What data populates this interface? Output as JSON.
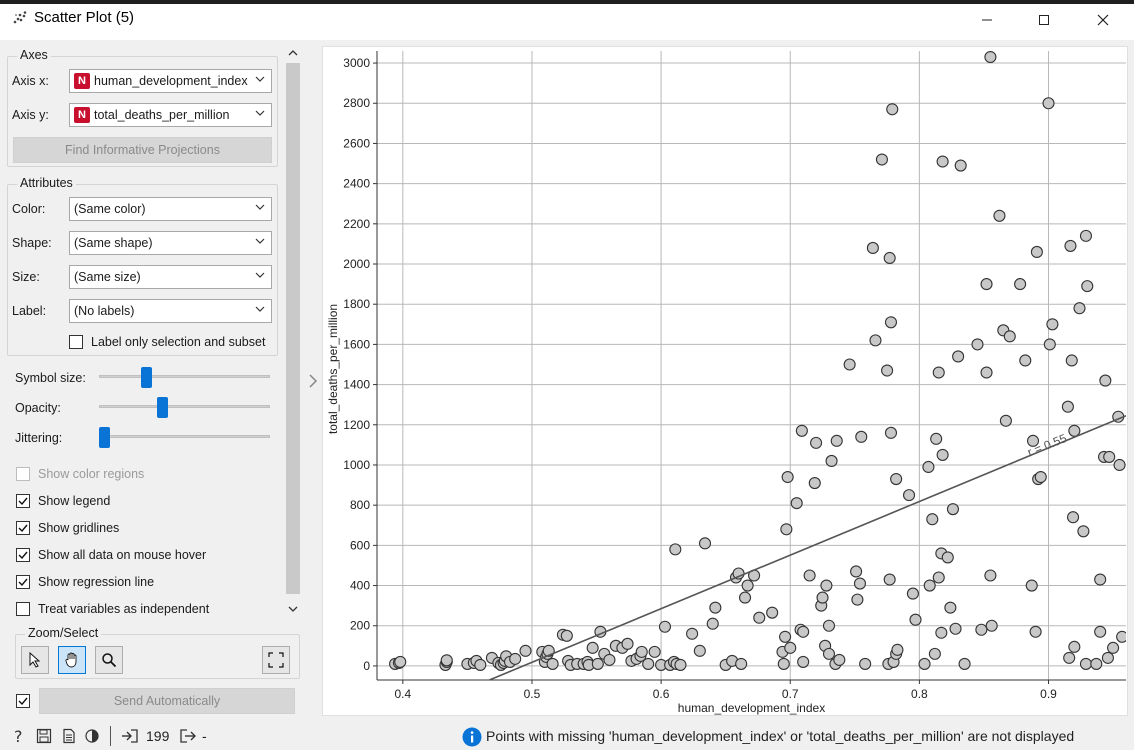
{
  "window": {
    "title": "Scatter Plot (5)",
    "controls": [
      "minimize-icon",
      "maximize-icon",
      "close-icon"
    ]
  },
  "axes_group": {
    "title": "Axes",
    "x_label": "Axis x:",
    "x_value": "human_development_index",
    "y_label": "Axis y:",
    "y_value": "total_deaths_per_million",
    "badge": "N",
    "find_button": "Find Informative Projections"
  },
  "attributes_group": {
    "title": "Attributes",
    "color_label": "Color:",
    "color_value": "(Same color)",
    "shape_label": "Shape:",
    "shape_value": "(Same shape)",
    "size_label": "Size:",
    "size_value": "(Same size)",
    "label_label": "Label:",
    "label_value": "(No labels)",
    "label_only_selection": "Label only selection and subset"
  },
  "sliders": {
    "symbol_size_label": "Symbol size:",
    "symbol_size_level": 0.28,
    "opacity_label": "Opacity:",
    "opacity_level": 0.38,
    "jittering_label": "Jittering:",
    "jittering_level": 0.0
  },
  "options": {
    "show_color_regions": "Show color regions",
    "show_legend": "Show legend",
    "show_gridlines": "Show gridlines",
    "show_all_data": "Show all data on mouse hover",
    "show_regression": "Show regression line",
    "treat_independent": "Treat variables as independent"
  },
  "zoom_select": {
    "title": "Zoom/Select"
  },
  "send_auto": "Send Automatically",
  "status": {
    "count": "199",
    "output": "-",
    "message": "Points with missing 'human_development_index' or 'total_deaths_per_million' are not displayed"
  },
  "chart_data": {
    "type": "scatter",
    "xlabel": "human_development_index",
    "ylabel": "total_deaths_per_million",
    "xlim": [
      0.38,
      0.96
    ],
    "ylim": [
      -70,
      3060
    ],
    "xticks": [
      "0.4",
      "0.5",
      "0.6",
      "0.7",
      "0.8",
      "0.9"
    ],
    "yticks": [
      "0",
      "200",
      "400",
      "600",
      "800",
      "1000",
      "1200",
      "1400",
      "1600",
      "1800",
      "2000",
      "2200",
      "2400",
      "2600",
      "2800",
      "3000"
    ],
    "xtick_values": [
      0.4,
      0.5,
      0.6,
      0.7,
      0.8,
      0.9
    ],
    "ytick_values": [
      0,
      200,
      400,
      600,
      800,
      1000,
      1200,
      1400,
      1600,
      1800,
      2000,
      2200,
      2400,
      2600,
      2800,
      3000
    ],
    "grid": true,
    "marker_color": "#c8c8c8",
    "marker_edge": "#333333",
    "regression": {
      "label": "r = 0.55",
      "x": [
        0.467,
        0.96
      ],
      "y": [
        -70,
        1245
      ]
    },
    "points": [
      [
        0.394,
        10
      ],
      [
        0.397,
        15
      ],
      [
        0.398,
        20
      ],
      [
        0.433,
        5
      ],
      [
        0.434,
        20
      ],
      [
        0.434,
        28
      ],
      [
        0.45,
        10
      ],
      [
        0.455,
        15
      ],
      [
        0.457,
        25
      ],
      [
        0.46,
        5
      ],
      [
        0.469,
        40
      ],
      [
        0.474,
        15
      ],
      [
        0.476,
        5
      ],
      [
        0.478,
        15
      ],
      [
        0.479,
        25
      ],
      [
        0.48,
        48
      ],
      [
        0.483,
        20
      ],
      [
        0.487,
        35
      ],
      [
        0.495,
        75
      ],
      [
        0.508,
        70
      ],
      [
        0.51,
        20
      ],
      [
        0.511,
        45
      ],
      [
        0.512,
        60
      ],
      [
        0.513,
        75
      ],
      [
        0.516,
        10
      ],
      [
        0.524,
        155
      ],
      [
        0.527,
        150
      ],
      [
        0.528,
        25
      ],
      [
        0.53,
        5
      ],
      [
        0.535,
        10
      ],
      [
        0.54,
        10
      ],
      [
        0.543,
        20
      ],
      [
        0.544,
        5
      ],
      [
        0.547,
        90
      ],
      [
        0.551,
        10
      ],
      [
        0.553,
        170
      ],
      [
        0.556,
        60
      ],
      [
        0.56,
        30
      ],
      [
        0.565,
        100
      ],
      [
        0.57,
        90
      ],
      [
        0.574,
        110
      ],
      [
        0.577,
        25
      ],
      [
        0.581,
        35
      ],
      [
        0.584,
        50
      ],
      [
        0.585,
        70
      ],
      [
        0.59,
        10
      ],
      [
        0.595,
        70
      ],
      [
        0.6,
        5
      ],
      [
        0.603,
        195
      ],
      [
        0.607,
        5
      ],
      [
        0.61,
        20
      ],
      [
        0.611,
        580
      ],
      [
        0.612,
        10
      ],
      [
        0.615,
        5
      ],
      [
        0.624,
        160
      ],
      [
        0.63,
        75
      ],
      [
        0.634,
        610
      ],
      [
        0.64,
        210
      ],
      [
        0.642,
        290
      ],
      [
        0.65,
        5
      ],
      [
        0.655,
        25
      ],
      [
        0.658,
        440
      ],
      [
        0.66,
        460
      ],
      [
        0.662,
        10
      ],
      [
        0.665,
        340
      ],
      [
        0.667,
        400
      ],
      [
        0.672,
        450
      ],
      [
        0.676,
        240
      ],
      [
        0.686,
        265
      ],
      [
        0.694,
        70
      ],
      [
        0.695,
        10
      ],
      [
        0.696,
        145
      ],
      [
        0.697,
        680
      ],
      [
        0.698,
        940
      ],
      [
        0.7,
        90
      ],
      [
        0.705,
        810
      ],
      [
        0.708,
        180
      ],
      [
        0.709,
        1170
      ],
      [
        0.71,
        20
      ],
      [
        0.71,
        170
      ],
      [
        0.715,
        450
      ],
      [
        0.719,
        910
      ],
      [
        0.72,
        1110
      ],
      [
        0.724,
        300
      ],
      [
        0.725,
        340
      ],
      [
        0.727,
        100
      ],
      [
        0.728,
        400
      ],
      [
        0.73,
        60
      ],
      [
        0.73,
        200
      ],
      [
        0.732,
        1020
      ],
      [
        0.735,
        10
      ],
      [
        0.736,
        1120
      ],
      [
        0.738,
        30
      ],
      [
        0.746,
        1500
      ],
      [
        0.751,
        470
      ],
      [
        0.752,
        330
      ],
      [
        0.754,
        410
      ],
      [
        0.755,
        1140
      ],
      [
        0.758,
        10
      ],
      [
        0.764,
        2080
      ],
      [
        0.766,
        1620
      ],
      [
        0.771,
        2520
      ],
      [
        0.775,
        1470
      ],
      [
        0.776,
        10
      ],
      [
        0.777,
        2030
      ],
      [
        0.777,
        430
      ],
      [
        0.778,
        1710
      ],
      [
        0.778,
        1160
      ],
      [
        0.779,
        2770
      ],
      [
        0.78,
        20
      ],
      [
        0.782,
        930
      ],
      [
        0.782,
        60
      ],
      [
        0.783,
        80
      ],
      [
        0.792,
        850
      ],
      [
        0.795,
        360
      ],
      [
        0.797,
        230
      ],
      [
        0.804,
        10
      ],
      [
        0.807,
        990
      ],
      [
        0.808,
        400
      ],
      [
        0.81,
        730
      ],
      [
        0.812,
        60
      ],
      [
        0.813,
        1130
      ],
      [
        0.815,
        440
      ],
      [
        0.815,
        1460
      ],
      [
        0.817,
        560
      ],
      [
        0.817,
        165
      ],
      [
        0.818,
        2510
      ],
      [
        0.818,
        1050
      ],
      [
        0.822,
        540
      ],
      [
        0.824,
        290
      ],
      [
        0.826,
        780
      ],
      [
        0.828,
        185
      ],
      [
        0.83,
        1540
      ],
      [
        0.832,
        2490
      ],
      [
        0.835,
        10
      ],
      [
        0.845,
        1600
      ],
      [
        0.848,
        180
      ],
      [
        0.852,
        1900
      ],
      [
        0.852,
        1460
      ],
      [
        0.855,
        3030
      ],
      [
        0.855,
        450
      ],
      [
        0.856,
        200
      ],
      [
        0.862,
        2240
      ],
      [
        0.865,
        1670
      ],
      [
        0.867,
        1220
      ],
      [
        0.87,
        1640
      ],
      [
        0.878,
        1900
      ],
      [
        0.882,
        1520
      ],
      [
        0.887,
        400
      ],
      [
        0.888,
        1120
      ],
      [
        0.89,
        170
      ],
      [
        0.891,
        2060
      ],
      [
        0.892,
        930
      ],
      [
        0.894,
        940
      ],
      [
        0.9,
        2800
      ],
      [
        0.901,
        1600
      ],
      [
        0.903,
        1700
      ],
      [
        0.915,
        1290
      ],
      [
        0.916,
        40
      ],
      [
        0.917,
        2090
      ],
      [
        0.918,
        1520
      ],
      [
        0.919,
        740
      ],
      [
        0.92,
        95
      ],
      [
        0.92,
        1170
      ],
      [
        0.924,
        1780
      ],
      [
        0.927,
        670
      ],
      [
        0.929,
        2140
      ],
      [
        0.929,
        10
      ],
      [
        0.93,
        1890
      ],
      [
        0.937,
        10
      ],
      [
        0.94,
        170
      ],
      [
        0.94,
        430
      ],
      [
        0.943,
        1040
      ],
      [
        0.944,
        1420
      ],
      [
        0.946,
        40
      ],
      [
        0.947,
        1040
      ],
      [
        0.95,
        90
      ],
      [
        0.954,
        1240
      ],
      [
        0.955,
        1000
      ],
      [
        0.957,
        145
      ]
    ]
  }
}
